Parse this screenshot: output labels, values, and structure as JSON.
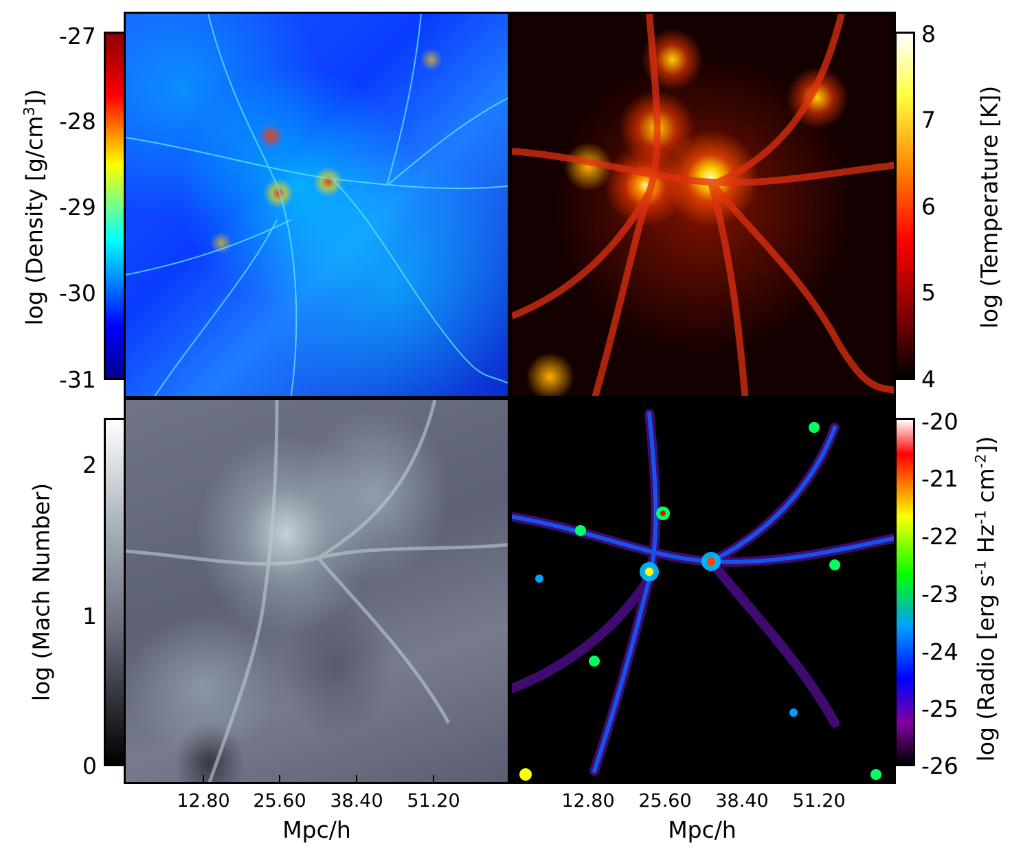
{
  "panels": [
    {
      "name": "density",
      "colorbar": {
        "label": "log (Density [g/cm3])",
        "ticks": [
          "-27",
          "-28",
          "-29",
          "-30",
          "-31"
        ],
        "colors": [
          "#8b0000",
          "#ff0000",
          "#ffff00",
          "#00ffff",
          "#0000ff",
          "#00008b"
        ]
      }
    },
    {
      "name": "temperature",
      "colorbar": {
        "label": "log (Temperature [K])",
        "ticks": [
          "8",
          "7",
          "6",
          "5",
          "4"
        ],
        "colors": [
          "#ffffff",
          "#ffff40",
          "#ff8000",
          "#ff0000",
          "#800000",
          "#000000"
        ]
      }
    },
    {
      "name": "mach",
      "colorbar": {
        "label": "log (Mach Number)",
        "ticks": [
          "2",
          "1",
          "0"
        ],
        "colors": [
          "#ffffff",
          "#aab4bc",
          "#6a6e7e",
          "#000000"
        ]
      }
    },
    {
      "name": "radio",
      "colorbar": {
        "label": "log (Radio [erg s-1 Hz-1 cm-2])",
        "ticks": [
          "-20",
          "-21",
          "-22",
          "-23",
          "-24",
          "-25",
          "-26"
        ],
        "colors": [
          "#ffffff",
          "#ff0000",
          "#ffff00",
          "#00ff00",
          "#00a0ff",
          "#0000ff",
          "#8000a0",
          "#000000"
        ]
      }
    }
  ],
  "xaxis": {
    "ticks": [
      "12.80",
      "25.60",
      "38.40",
      "51.20"
    ],
    "label": "Mpc/h"
  },
  "labels": {
    "density_pre": "log (Density [g/cm",
    "density_sup": "3",
    "density_post": "])",
    "temperature": "log (Temperature [K])",
    "mach": "log (Mach Number)",
    "radio_a": "log (Radio [erg s",
    "radio_s1": "-1",
    "radio_b": " Hz",
    "radio_s2": "-1",
    "radio_c": " cm",
    "radio_s3": "-2",
    "radio_d": "])"
  }
}
